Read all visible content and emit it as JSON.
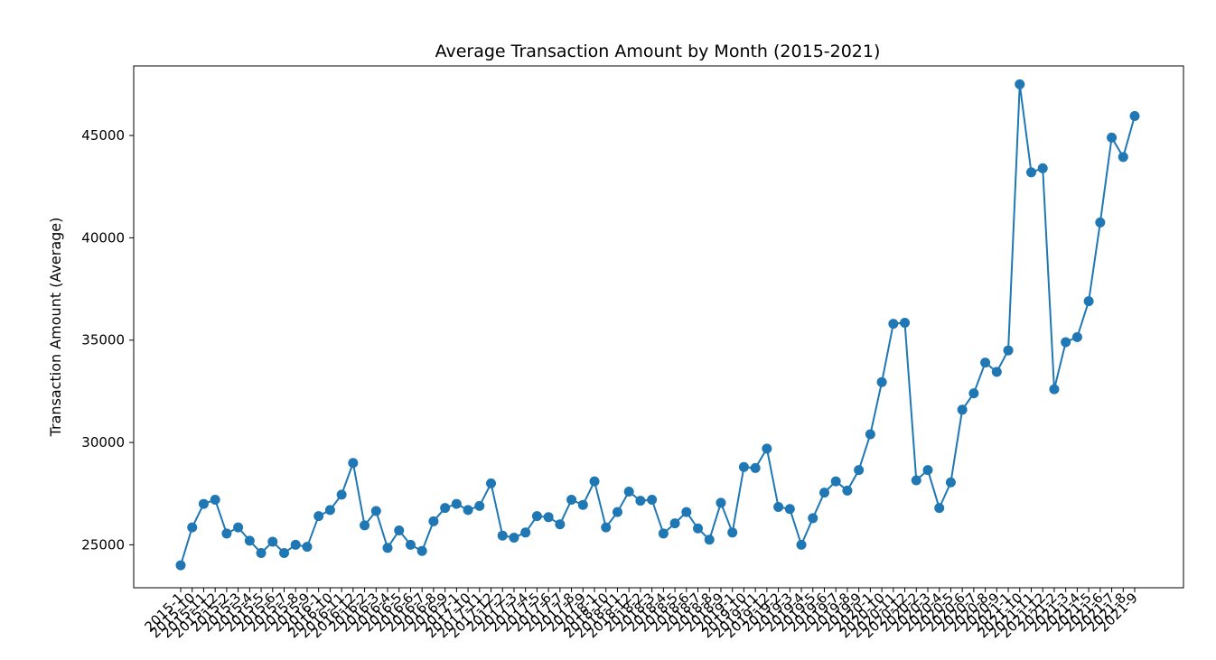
{
  "chart_data": {
    "type": "line",
    "title": "Average Transaction Amount by Month (2015-2021)",
    "xlabel": "",
    "ylabel": "Transaction Amount (Average)",
    "ylim": [
      22900,
      48400
    ],
    "yticks": [
      25000,
      30000,
      35000,
      40000,
      45000
    ],
    "grid": false,
    "legend": "none",
    "colors": {
      "series": "#1f77b4",
      "axes": "#000000"
    },
    "categories": [
      "2015-1",
      "2015-10",
      "2015-11",
      "2015-12",
      "2015-2",
      "2015-3",
      "2015-4",
      "2015-5",
      "2015-6",
      "2015-7",
      "2015-8",
      "2015-9",
      "2016-1",
      "2016-10",
      "2016-11",
      "2016-12",
      "2016-2",
      "2016-3",
      "2016-4",
      "2016-5",
      "2016-6",
      "2016-7",
      "2016-8",
      "2016-9",
      "2017-1",
      "2017-10",
      "2017-11",
      "2017-12",
      "2017-2",
      "2017-3",
      "2017-4",
      "2017-5",
      "2017-6",
      "2017-7",
      "2017-8",
      "2017-9",
      "2018-1",
      "2018-10",
      "2018-11",
      "2018-12",
      "2018-2",
      "2018-3",
      "2018-4",
      "2018-5",
      "2018-6",
      "2018-7",
      "2018-8",
      "2018-9",
      "2019-1",
      "2019-10",
      "2019-11",
      "2019-12",
      "2019-2",
      "2019-3",
      "2019-4",
      "2019-5",
      "2019-6",
      "2019-7",
      "2019-8",
      "2019-9",
      "2020-1",
      "2020-10",
      "2020-11",
      "2020-12",
      "2020-2",
      "2020-3",
      "2020-4",
      "2020-5",
      "2020-6",
      "2020-7",
      "2020-8",
      "2020-9",
      "2021-1",
      "2021-10",
      "2021-11",
      "2021-12",
      "2021-2",
      "2021-3",
      "2021-4",
      "2021-5",
      "2021-6",
      "2021-7",
      "2021-8",
      "2021-9"
    ],
    "series": [
      {
        "values": [
          24000,
          25850,
          27000,
          27200,
          25550,
          25850,
          25200,
          24600,
          25150,
          24600,
          25000,
          24900,
          26400,
          26700,
          27450,
          29000,
          25950,
          26650,
          24850,
          25700,
          25000,
          24700,
          26150,
          26800,
          27000,
          26700,
          26900,
          28000,
          25450,
          25350,
          25600,
          26400,
          26350,
          26000,
          27200,
          26950,
          28100,
          25850,
          26600,
          27600,
          27150,
          27200,
          25550,
          26050,
          26600,
          25800,
          25250,
          27050,
          25600,
          28800,
          28750,
          29700,
          26850,
          26750,
          25000,
          26300,
          27550,
          28100,
          27650,
          28650,
          30400,
          32950,
          35800,
          35850,
          28150,
          28650,
          26800,
          28050,
          31600,
          32400,
          33900,
          33450,
          34500,
          47500,
          43200,
          43400,
          32600,
          34900,
          35150,
          36900,
          40750,
          44900,
          43950,
          45950
        ]
      }
    ]
  }
}
